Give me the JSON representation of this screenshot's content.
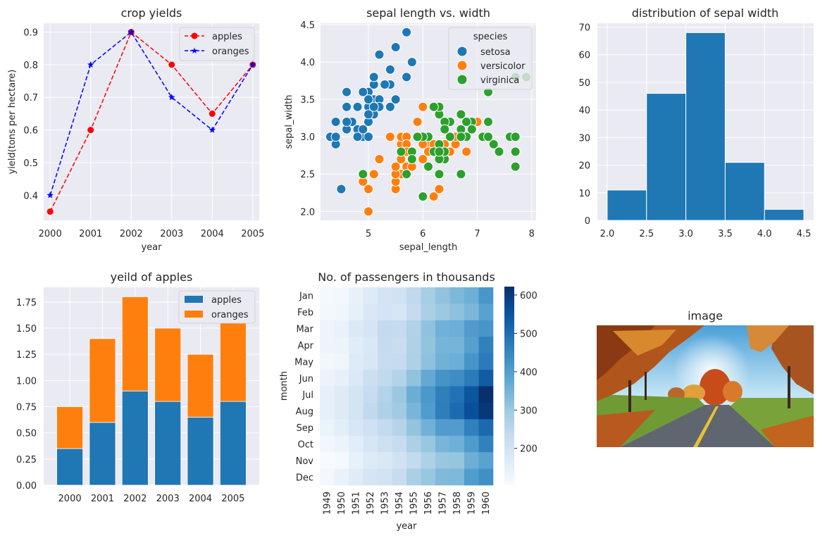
{
  "chart_data": [
    {
      "id": "crop",
      "type": "line",
      "title": "crop yields",
      "xlabel": "year",
      "ylabel": "yield(tons per hectare)",
      "xlim": [
        1999.84,
        2005.16
      ],
      "ylim": [
        0.323,
        0.927
      ],
      "x": [
        2000,
        2001,
        2002,
        2003,
        2004,
        2005
      ],
      "xticks": [
        "2000",
        "2001",
        "2002",
        "2003",
        "2004",
        "2005"
      ],
      "yticks": [
        "0.4",
        "0.5",
        "0.6",
        "0.7",
        "0.8",
        "0.9"
      ],
      "legend_position": "upper right",
      "grid": true,
      "series": [
        {
          "name": "apples",
          "values": [
            0.35,
            0.6,
            0.9,
            0.8,
            0.65,
            0.8
          ],
          "color": "#ff0000",
          "marker": "circle",
          "linestyle": "dashed"
        },
        {
          "name": "oranges",
          "values": [
            0.4,
            0.8,
            0.9,
            0.7,
            0.6,
            0.8
          ],
          "color": "#0000ff",
          "marker": "star",
          "linestyle": "dashed"
        }
      ]
    },
    {
      "id": "iris",
      "type": "scatter",
      "title": "sepal length vs. width",
      "xlabel": "sepal_length",
      "ylabel": "sepal_width",
      "xlim": [
        4.12,
        8.08
      ],
      "ylim": [
        1.88,
        4.52
      ],
      "xticks": [
        "5",
        "6",
        "7",
        "8"
      ],
      "yticks": [
        "2.0",
        "2.5",
        "3.0",
        "3.5",
        "4.0",
        "4.5"
      ],
      "legend_title": "species",
      "legend_position": "upper right",
      "grid": true,
      "series": [
        {
          "name": "setosa",
          "color": "#1f77b4",
          "points": [
            [
              5.1,
              3.5
            ],
            [
              4.9,
              3.0
            ],
            [
              4.7,
              3.2
            ],
            [
              4.6,
              3.1
            ],
            [
              5.0,
              3.6
            ],
            [
              5.4,
              3.9
            ],
            [
              4.6,
              3.4
            ],
            [
              5.0,
              3.4
            ],
            [
              4.4,
              2.9
            ],
            [
              4.9,
              3.1
            ],
            [
              5.4,
              3.7
            ],
            [
              4.8,
              3.4
            ],
            [
              4.8,
              3.0
            ],
            [
              4.3,
              3.0
            ],
            [
              5.8,
              4.0
            ],
            [
              5.7,
              4.4
            ],
            [
              5.4,
              3.9
            ],
            [
              5.1,
              3.5
            ],
            [
              5.7,
              3.8
            ],
            [
              5.1,
              3.8
            ],
            [
              5.4,
              3.4
            ],
            [
              5.1,
              3.7
            ],
            [
              4.6,
              3.6
            ],
            [
              5.1,
              3.3
            ],
            [
              4.8,
              3.4
            ],
            [
              5.0,
              3.0
            ],
            [
              5.0,
              3.4
            ],
            [
              5.2,
              3.5
            ],
            [
              5.2,
              3.4
            ],
            [
              4.7,
              3.2
            ],
            [
              4.8,
              3.1
            ],
            [
              5.4,
              3.4
            ],
            [
              5.2,
              4.1
            ],
            [
              5.5,
              4.2
            ],
            [
              4.9,
              3.1
            ],
            [
              5.0,
              3.2
            ],
            [
              5.5,
              3.5
            ],
            [
              4.9,
              3.6
            ],
            [
              4.4,
              3.0
            ],
            [
              5.1,
              3.4
            ],
            [
              5.0,
              3.5
            ],
            [
              4.5,
              2.3
            ],
            [
              4.4,
              3.2
            ],
            [
              5.0,
              3.5
            ],
            [
              5.1,
              3.8
            ],
            [
              4.8,
              3.0
            ],
            [
              5.1,
              3.8
            ],
            [
              4.6,
              3.2
            ],
            [
              5.3,
              3.7
            ],
            [
              5.0,
              3.3
            ]
          ]
        },
        {
          "name": "versicolor",
          "color": "#ff7f0e",
          "points": [
            [
              7.0,
              3.2
            ],
            [
              6.4,
              3.2
            ],
            [
              6.9,
              3.1
            ],
            [
              5.5,
              2.3
            ],
            [
              6.5,
              2.8
            ],
            [
              5.7,
              2.8
            ],
            [
              6.3,
              3.3
            ],
            [
              4.9,
              2.4
            ],
            [
              6.6,
              2.9
            ],
            [
              5.2,
              2.7
            ],
            [
              5.0,
              2.0
            ],
            [
              5.9,
              3.0
            ],
            [
              6.0,
              2.2
            ],
            [
              6.1,
              2.9
            ],
            [
              5.6,
              2.9
            ],
            [
              6.7,
              3.1
            ],
            [
              5.6,
              3.0
            ],
            [
              5.8,
              2.7
            ],
            [
              6.2,
              2.2
            ],
            [
              5.6,
              2.5
            ],
            [
              5.9,
              3.2
            ],
            [
              6.1,
              2.8
            ],
            [
              6.3,
              2.5
            ],
            [
              6.1,
              2.8
            ],
            [
              6.4,
              2.9
            ],
            [
              6.6,
              3.0
            ],
            [
              6.8,
              2.8
            ],
            [
              6.7,
              3.0
            ],
            [
              6.0,
              2.9
            ],
            [
              5.7,
              2.6
            ],
            [
              5.5,
              2.4
            ],
            [
              5.5,
              2.4
            ],
            [
              5.8,
              2.7
            ],
            [
              6.0,
              2.7
            ],
            [
              5.4,
              3.0
            ],
            [
              6.0,
              3.4
            ],
            [
              6.7,
              3.1
            ],
            [
              6.3,
              2.3
            ],
            [
              5.6,
              3.0
            ],
            [
              5.5,
              2.5
            ],
            [
              5.5,
              2.6
            ],
            [
              6.1,
              3.0
            ],
            [
              5.8,
              2.6
            ],
            [
              5.0,
              2.3
            ],
            [
              5.6,
              2.7
            ],
            [
              5.7,
              3.0
            ],
            [
              5.7,
              2.9
            ],
            [
              6.2,
              2.9
            ],
            [
              5.1,
              2.5
            ],
            [
              5.7,
              2.8
            ]
          ]
        },
        {
          "name": "virginica",
          "color": "#2ca02c",
          "points": [
            [
              6.3,
              3.3
            ],
            [
              5.8,
              2.7
            ],
            [
              7.1,
              3.0
            ],
            [
              6.3,
              2.9
            ],
            [
              6.5,
              3.0
            ],
            [
              7.6,
              3.0
            ],
            [
              4.9,
              2.5
            ],
            [
              7.3,
              2.9
            ],
            [
              6.7,
              2.5
            ],
            [
              7.2,
              3.6
            ],
            [
              6.5,
              3.2
            ],
            [
              6.4,
              2.7
            ],
            [
              6.8,
              3.0
            ],
            [
              5.7,
              2.5
            ],
            [
              5.8,
              2.8
            ],
            [
              6.4,
              3.2
            ],
            [
              6.5,
              3.0
            ],
            [
              7.7,
              3.8
            ],
            [
              7.7,
              2.6
            ],
            [
              6.0,
              2.2
            ],
            [
              6.9,
              3.2
            ],
            [
              5.6,
              2.8
            ],
            [
              7.7,
              2.8
            ],
            [
              6.3,
              2.7
            ],
            [
              6.7,
              3.3
            ],
            [
              7.2,
              3.2
            ],
            [
              6.2,
              2.8
            ],
            [
              6.1,
              3.0
            ],
            [
              6.4,
              2.8
            ],
            [
              7.2,
              3.0
            ],
            [
              7.4,
              2.8
            ],
            [
              7.9,
              3.8
            ],
            [
              6.4,
              2.8
            ],
            [
              6.3,
              2.8
            ],
            [
              6.1,
              2.6
            ],
            [
              7.7,
              3.0
            ],
            [
              6.3,
              3.4
            ],
            [
              6.4,
              3.1
            ],
            [
              6.0,
              3.0
            ],
            [
              6.9,
              3.1
            ],
            [
              6.7,
              3.1
            ],
            [
              6.9,
              3.1
            ],
            [
              5.8,
              2.7
            ],
            [
              6.8,
              3.2
            ],
            [
              6.7,
              3.3
            ],
            [
              6.7,
              3.0
            ],
            [
              6.3,
              2.5
            ],
            [
              6.5,
              3.0
            ],
            [
              6.2,
              3.4
            ],
            [
              5.9,
              3.0
            ]
          ]
        }
      ]
    },
    {
      "id": "hist",
      "type": "bar",
      "title": "distribution of sepal width",
      "bins": [
        [
          2.0,
          2.5
        ],
        [
          2.5,
          3.0
        ],
        [
          3.0,
          3.5
        ],
        [
          3.5,
          4.0
        ],
        [
          4.0,
          4.5
        ]
      ],
      "values": [
        11,
        46,
        68,
        21,
        4
      ],
      "xlim": [
        1.875,
        4.625
      ],
      "ylim": [
        0,
        71.4
      ],
      "xticks": [
        "2.0",
        "2.5",
        "3.0",
        "3.5",
        "4.0",
        "4.5"
      ],
      "yticks": [
        "0",
        "10",
        "20",
        "30",
        "40",
        "50",
        "60",
        "70"
      ],
      "color": "#1f77b4",
      "grid": true
    },
    {
      "id": "stack",
      "type": "bar",
      "title": "yeild of apples",
      "categories": [
        "2000",
        "2001",
        "2002",
        "2003",
        "2004",
        "2005"
      ],
      "ylim": [
        0,
        1.89
      ],
      "yticks": [
        "0.00",
        "0.25",
        "0.50",
        "0.75",
        "1.00",
        "1.25",
        "1.50",
        "1.75"
      ],
      "legend_position": "upper right",
      "stacked": true,
      "grid": true,
      "series": [
        {
          "name": "apples",
          "values": [
            0.35,
            0.6,
            0.9,
            0.8,
            0.65,
            0.8
          ],
          "color": "#1f77b4"
        },
        {
          "name": "oranges",
          "values": [
            0.4,
            0.8,
            0.9,
            0.7,
            0.6,
            0.8
          ],
          "color": "#ff7f0e"
        }
      ]
    },
    {
      "id": "heat",
      "type": "heatmap",
      "title": "No. of passengers in thousands",
      "xlabel": "year",
      "ylabel": "month",
      "x": [
        "1949",
        "1950",
        "1951",
        "1952",
        "1953",
        "1954",
        "1955",
        "1956",
        "1957",
        "1958",
        "1959",
        "1960"
      ],
      "y": [
        "Jan",
        "Feb",
        "Mar",
        "Apr",
        "May",
        "Jun",
        "Jul",
        "Aug",
        "Sep",
        "Oct",
        "Nov",
        "Dec"
      ],
      "values": [
        [
          112,
          115,
          145,
          171,
          196,
          204,
          242,
          284,
          315,
          340,
          360,
          417
        ],
        [
          118,
          126,
          150,
          180,
          196,
          188,
          233,
          277,
          301,
          318,
          342,
          391
        ],
        [
          132,
          141,
          178,
          193,
          236,
          235,
          267,
          317,
          356,
          362,
          406,
          419
        ],
        [
          129,
          135,
          163,
          181,
          235,
          227,
          269,
          313,
          348,
          348,
          396,
          461
        ],
        [
          121,
          125,
          172,
          183,
          229,
          234,
          270,
          318,
          355,
          363,
          420,
          472
        ],
        [
          135,
          149,
          178,
          218,
          243,
          264,
          315,
          374,
          422,
          435,
          472,
          535
        ],
        [
          148,
          170,
          199,
          230,
          264,
          302,
          364,
          413,
          465,
          491,
          548,
          622
        ],
        [
          148,
          170,
          199,
          242,
          272,
          293,
          347,
          405,
          467,
          505,
          559,
          606
        ],
        [
          136,
          158,
          184,
          209,
          237,
          259,
          312,
          355,
          404,
          404,
          463,
          508
        ],
        [
          119,
          133,
          162,
          191,
          211,
          229,
          274,
          306,
          347,
          359,
          407,
          461
        ],
        [
          104,
          114,
          146,
          172,
          180,
          203,
          237,
          271,
          305,
          310,
          362,
          390
        ],
        [
          118,
          140,
          166,
          194,
          201,
          229,
          278,
          306,
          336,
          337,
          405,
          432
        ]
      ],
      "vmin": 104,
      "vmax": 622,
      "colorbar_ticks": [
        "200",
        "300",
        "400",
        "500",
        "600"
      ],
      "colormap": "Blues"
    },
    {
      "id": "image",
      "type": "image",
      "title": "image"
    }
  ]
}
